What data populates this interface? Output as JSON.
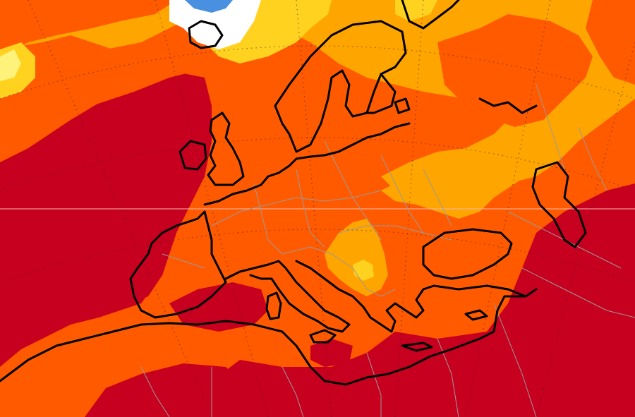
{
  "map": {
    "region": "Europe",
    "colors": {
      "cold_blue": "#4a90e0",
      "white": "#ffffff",
      "pale_yellow": "#fff27a",
      "yellow": "#ffd21f",
      "light_orange": "#ffa500",
      "orange": "#ff5a00",
      "red_orange": "#f0380a",
      "dark_red": "#c80020",
      "coastline": "#000000",
      "borders": "#9a9a9a",
      "graticule": "#3a1a1a"
    }
  }
}
